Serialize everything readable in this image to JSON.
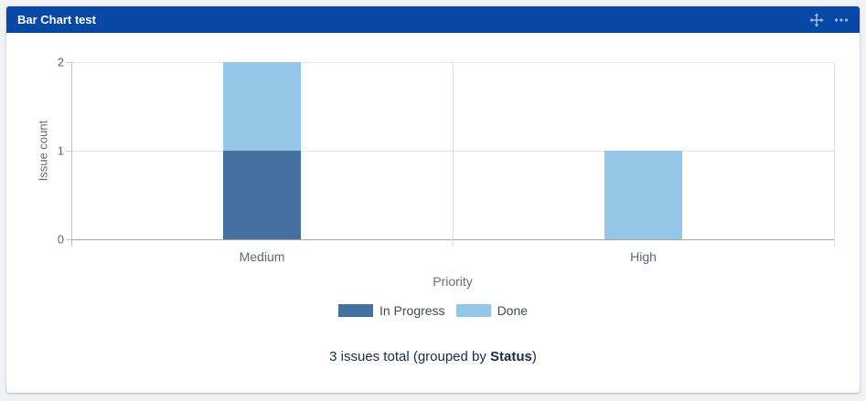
{
  "header": {
    "title": "Bar Chart test",
    "icons": {
      "move": "move-icon",
      "more": "more-options-icon"
    }
  },
  "chart_data": {
    "type": "bar",
    "stacked": true,
    "title": "",
    "categories": [
      "Medium",
      "High"
    ],
    "series": [
      {
        "name": "In Progress",
        "color": "#44719F",
        "values": [
          1,
          0
        ]
      },
      {
        "name": "Done",
        "color": "#94C6E7",
        "values": [
          1,
          1
        ]
      }
    ],
    "xlabel": "Priority",
    "ylabel": "Issue count",
    "ylim": [
      0,
      2
    ],
    "yticks": [
      0,
      1,
      2
    ],
    "grid": true,
    "legend_position": "bottom"
  },
  "summary": {
    "prefix": "3 issues total (grouped by ",
    "group_by": "Status",
    "suffix": ")"
  },
  "colors": {
    "header_bg": "#0747A6",
    "page_bg": "#f0f1f4",
    "card_bg": "#ffffff",
    "in_progress": "#44719F",
    "done": "#94C6E7",
    "summary_text": "#172B4D"
  }
}
